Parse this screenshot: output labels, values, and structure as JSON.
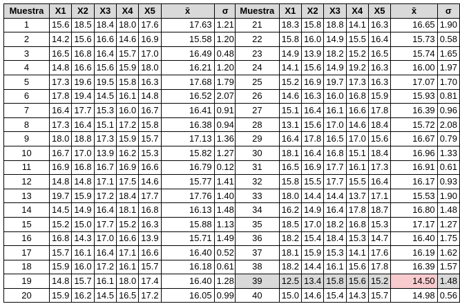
{
  "headers": [
    "Muestra",
    "X1",
    "X2",
    "X3",
    "X4",
    "X5",
    "x̄",
    "σ"
  ],
  "left_rows": [
    [
      "1",
      "15.6",
      "18.5",
      "18.4",
      "18.0",
      "17.6",
      "17.63",
      "1.21"
    ],
    [
      "2",
      "14.2",
      "15.6",
      "16.6",
      "14.6",
      "16.9",
      "15.58",
      "1.20"
    ],
    [
      "3",
      "16.5",
      "16.8",
      "16.4",
      "15.7",
      "17.0",
      "16.49",
      "0.48"
    ],
    [
      "4",
      "14.8",
      "16.6",
      "15.6",
      "15.9",
      "18.0",
      "16.21",
      "1.20"
    ],
    [
      "5",
      "17.3",
      "19.6",
      "19.5",
      "15.8",
      "16.3",
      "17.68",
      "1.79"
    ],
    [
      "6",
      "17.8",
      "19.4",
      "14.5",
      "16.1",
      "14.8",
      "16.52",
      "2.07"
    ],
    [
      "7",
      "16.4",
      "17.7",
      "15.3",
      "16.0",
      "16.7",
      "16.41",
      "0.91"
    ],
    [
      "8",
      "17.3",
      "16.4",
      "15.1",
      "17.2",
      "15.8",
      "16.38",
      "0.94"
    ],
    [
      "9",
      "18.0",
      "18.8",
      "17.3",
      "15.9",
      "15.7",
      "17.13",
      "1.36"
    ],
    [
      "10",
      "16.7",
      "17.0",
      "13.9",
      "16.2",
      "15.3",
      "15.82",
      "1.27"
    ],
    [
      "11",
      "16.9",
      "16.8",
      "16.7",
      "16.9",
      "16.6",
      "16.79",
      "0.12"
    ],
    [
      "12",
      "14.8",
      "14.8",
      "17.1",
      "17.5",
      "14.6",
      "15.77",
      "1.41"
    ],
    [
      "13",
      "19.7",
      "15.9",
      "17.2",
      "18.4",
      "17.7",
      "17.76",
      "1.40"
    ],
    [
      "14",
      "14.5",
      "14.9",
      "16.4",
      "18.1",
      "16.8",
      "16.13",
      "1.48"
    ],
    [
      "15",
      "15.2",
      "15.0",
      "17.7",
      "15.2",
      "16.3",
      "15.88",
      "1.13"
    ],
    [
      "16",
      "16.8",
      "14.3",
      "17.0",
      "16.6",
      "13.9",
      "15.71",
      "1.49"
    ],
    [
      "17",
      "15.7",
      "16.1",
      "16.4",
      "17.1",
      "16.6",
      "16.40",
      "0.52"
    ],
    [
      "18",
      "15.9",
      "16.0",
      "17.2",
      "16.1",
      "15.7",
      "16.18",
      "0.61"
    ],
    [
      "19",
      "14.8",
      "15.7",
      "16.1",
      "18.0",
      "17.4",
      "16.40",
      "1.28"
    ],
    [
      "20",
      "15.9",
      "16.2",
      "14.5",
      "16.5",
      "17.2",
      "16.05",
      "0.99"
    ]
  ],
  "right_rows": [
    [
      "21",
      "18.3",
      "15.8",
      "18.8",
      "14.1",
      "16.3",
      "16.65",
      "1.90"
    ],
    [
      "22",
      "15.8",
      "16.0",
      "14.9",
      "15.5",
      "16.4",
      "15.73",
      "0.58"
    ],
    [
      "23",
      "14.9",
      "13.9",
      "18.2",
      "15.2",
      "16.5",
      "15.74",
      "1.65"
    ],
    [
      "24",
      "14.1",
      "15.6",
      "14.9",
      "19.2",
      "16.3",
      "16.00",
      "1.97"
    ],
    [
      "25",
      "15.2",
      "16.9",
      "19.7",
      "17.3",
      "16.3",
      "17.07",
      "1.70"
    ],
    [
      "26",
      "14.6",
      "16.3",
      "16.0",
      "16.8",
      "15.9",
      "15.93",
      "0.81"
    ],
    [
      "27",
      "15.1",
      "16.4",
      "16.1",
      "16.6",
      "17.8",
      "16.39",
      "0.96"
    ],
    [
      "28",
      "13.1",
      "15.6",
      "17.0",
      "14.6",
      "18.4",
      "15.72",
      "2.08"
    ],
    [
      "29",
      "16.4",
      "17.8",
      "16.5",
      "17.0",
      "15.6",
      "16.67",
      "0.79"
    ],
    [
      "30",
      "18.1",
      "16.4",
      "16.8",
      "15.1",
      "18.4",
      "16.96",
      "1.33"
    ],
    [
      "31",
      "16.5",
      "16.9",
      "17.7",
      "16.1",
      "17.3",
      "16.91",
      "0.61"
    ],
    [
      "32",
      "15.8",
      "15.5",
      "17.7",
      "15.5",
      "16.4",
      "16.17",
      "0.93"
    ],
    [
      "33",
      "18.0",
      "14.4",
      "14.4",
      "13.7",
      "17.1",
      "15.53",
      "1.90"
    ],
    [
      "34",
      "16.2",
      "14.9",
      "16.4",
      "17.8",
      "18.7",
      "16.80",
      "1.48"
    ],
    [
      "35",
      "18.5",
      "17.0",
      "18.2",
      "16.8",
      "15.3",
      "17.17",
      "1.27"
    ],
    [
      "36",
      "18.2",
      "15.4",
      "18.4",
      "15.3",
      "14.7",
      "16.40",
      "1.75"
    ],
    [
      "37",
      "18.1",
      "15.9",
      "15.3",
      "14.1",
      "17.6",
      "16.19",
      "1.62"
    ],
    [
      "38",
      "18.2",
      "14.4",
      "16.1",
      "15.6",
      "17.8",
      "16.39",
      "1.57"
    ],
    [
      "39",
      "12.5",
      "13.4",
      "15.8",
      "15.6",
      "15.2",
      "14.50",
      "1.48"
    ],
    [
      "40",
      "15.0",
      "14.6",
      "15.4",
      "14.3",
      "15.7",
      "14.98",
      "0.56"
    ]
  ],
  "highlight": {
    "row_label": "39",
    "row_color": "#d9d9d9",
    "mean_color": "#f8cbcf"
  },
  "colors": {
    "header_bg": "#d9d9d9",
    "border": "#000000",
    "cell_bg": "#ffffff"
  }
}
